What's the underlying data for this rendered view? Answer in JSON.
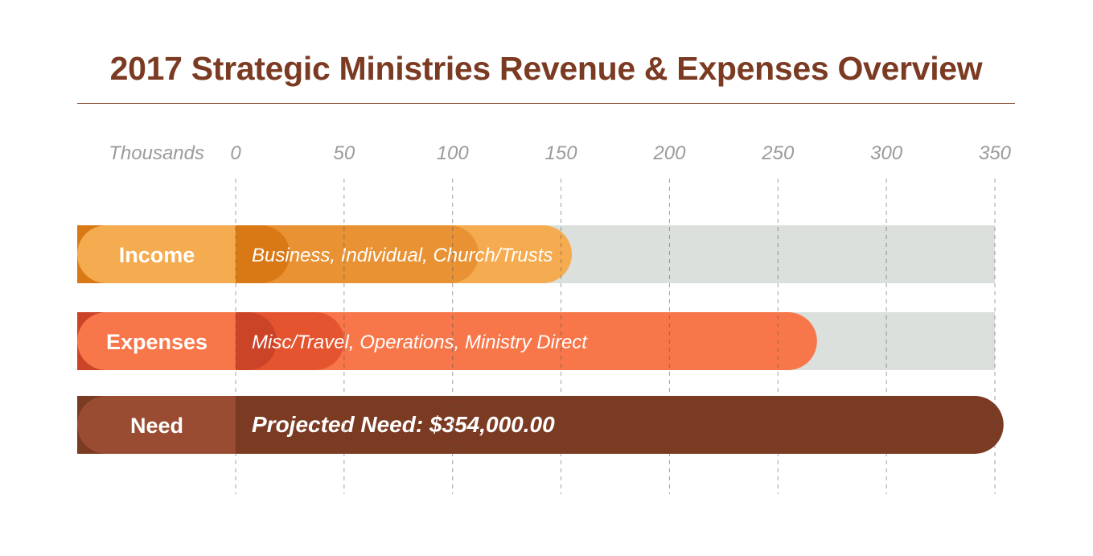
{
  "chart_data": {
    "type": "bar",
    "title": "2017 Strategic Ministries Revenue & Expenses Overview",
    "unit_label": "Thousands",
    "xlim": [
      0,
      350
    ],
    "ticks": [
      0,
      50,
      100,
      150,
      200,
      250,
      300,
      350
    ],
    "grid": true,
    "rows": [
      {
        "label": "Income",
        "description": "Business, Individual, Church/Trusts",
        "segments_cumulative": [
          25,
          112,
          155
        ],
        "track_max": 350,
        "label_color": "#f5ab4f",
        "segment_colors": [
          "#d97916",
          "#e89233",
          "#f5ab4f"
        ],
        "track_color": "#dbe0dc"
      },
      {
        "label": "Expenses",
        "description": "Misc/Travel, Operations, Ministry Direct",
        "segments_cumulative": [
          19,
          50,
          268
        ],
        "track_max": 350,
        "label_color": "#f7764a",
        "segment_colors": [
          "#cb4428",
          "#e4552f",
          "#f7764a"
        ],
        "track_color": "#dbe0dc"
      },
      {
        "label": "Need",
        "description": "Projected Need: $354,000.00",
        "segments_cumulative": [
          354
        ],
        "track_max": null,
        "label_color": "#9a4c32",
        "segment_colors": [
          "#7b3a22"
        ],
        "track_color": null
      }
    ]
  }
}
